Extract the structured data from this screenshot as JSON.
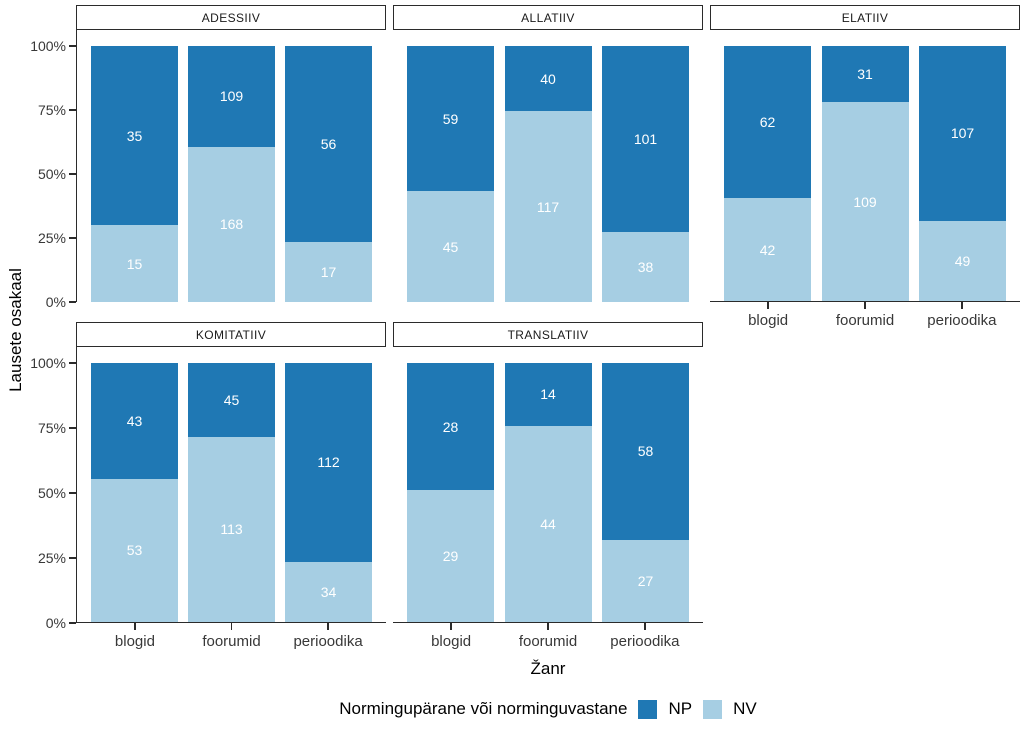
{
  "figure": {
    "y_axis_title": "Lausete osakaal",
    "x_axis_title": "Žanr",
    "y_ticks": [
      "100%",
      "75%",
      "50%",
      "25%",
      "0%"
    ],
    "legend": {
      "title": "Normingupärane või norminguvastane",
      "items": [
        {
          "label": "NP",
          "color": "#1F78B4"
        },
        {
          "label": "NV",
          "color": "#A6CEE3"
        }
      ]
    }
  },
  "chart_data": {
    "type": "bar",
    "subtype": "stacked-100-percent-facets",
    "categories": [
      "blogid",
      "foorumid",
      "perioodika"
    ],
    "xlabel": "Žanr",
    "ylabel": "Lausete osakaal",
    "ylim": [
      0,
      100
    ],
    "yticks_percent": [
      0,
      25,
      50,
      75,
      100
    ],
    "grid": false,
    "legend_position": "bottom",
    "series_colors": {
      "NP": "#1F78B4",
      "NV": "#A6CEE3"
    },
    "stack_order_bottom_to_top": [
      "NV",
      "NP"
    ],
    "facets": [
      {
        "title": "ADESSIIV",
        "row": 0,
        "col": 0,
        "values": {
          "NP": [
            35,
            109,
            56
          ],
          "NV": [
            15,
            168,
            17
          ]
        }
      },
      {
        "title": "ALLATIIV",
        "row": 0,
        "col": 1,
        "values": {
          "NP": [
            59,
            40,
            101
          ],
          "NV": [
            45,
            117,
            38
          ]
        }
      },
      {
        "title": "ELATIIV",
        "row": 0,
        "col": 2,
        "values": {
          "NP": [
            62,
            31,
            107
          ],
          "NV": [
            42,
            109,
            49
          ]
        }
      },
      {
        "title": "KOMITATIIV",
        "row": 1,
        "col": 0,
        "values": {
          "NP": [
            43,
            45,
            112
          ],
          "NV": [
            53,
            113,
            34
          ]
        }
      },
      {
        "title": "TRANSLATIIV",
        "row": 1,
        "col": 1,
        "values": {
          "NP": [
            28,
            14,
            58
          ],
          "NV": [
            29,
            44,
            27
          ]
        }
      }
    ]
  }
}
